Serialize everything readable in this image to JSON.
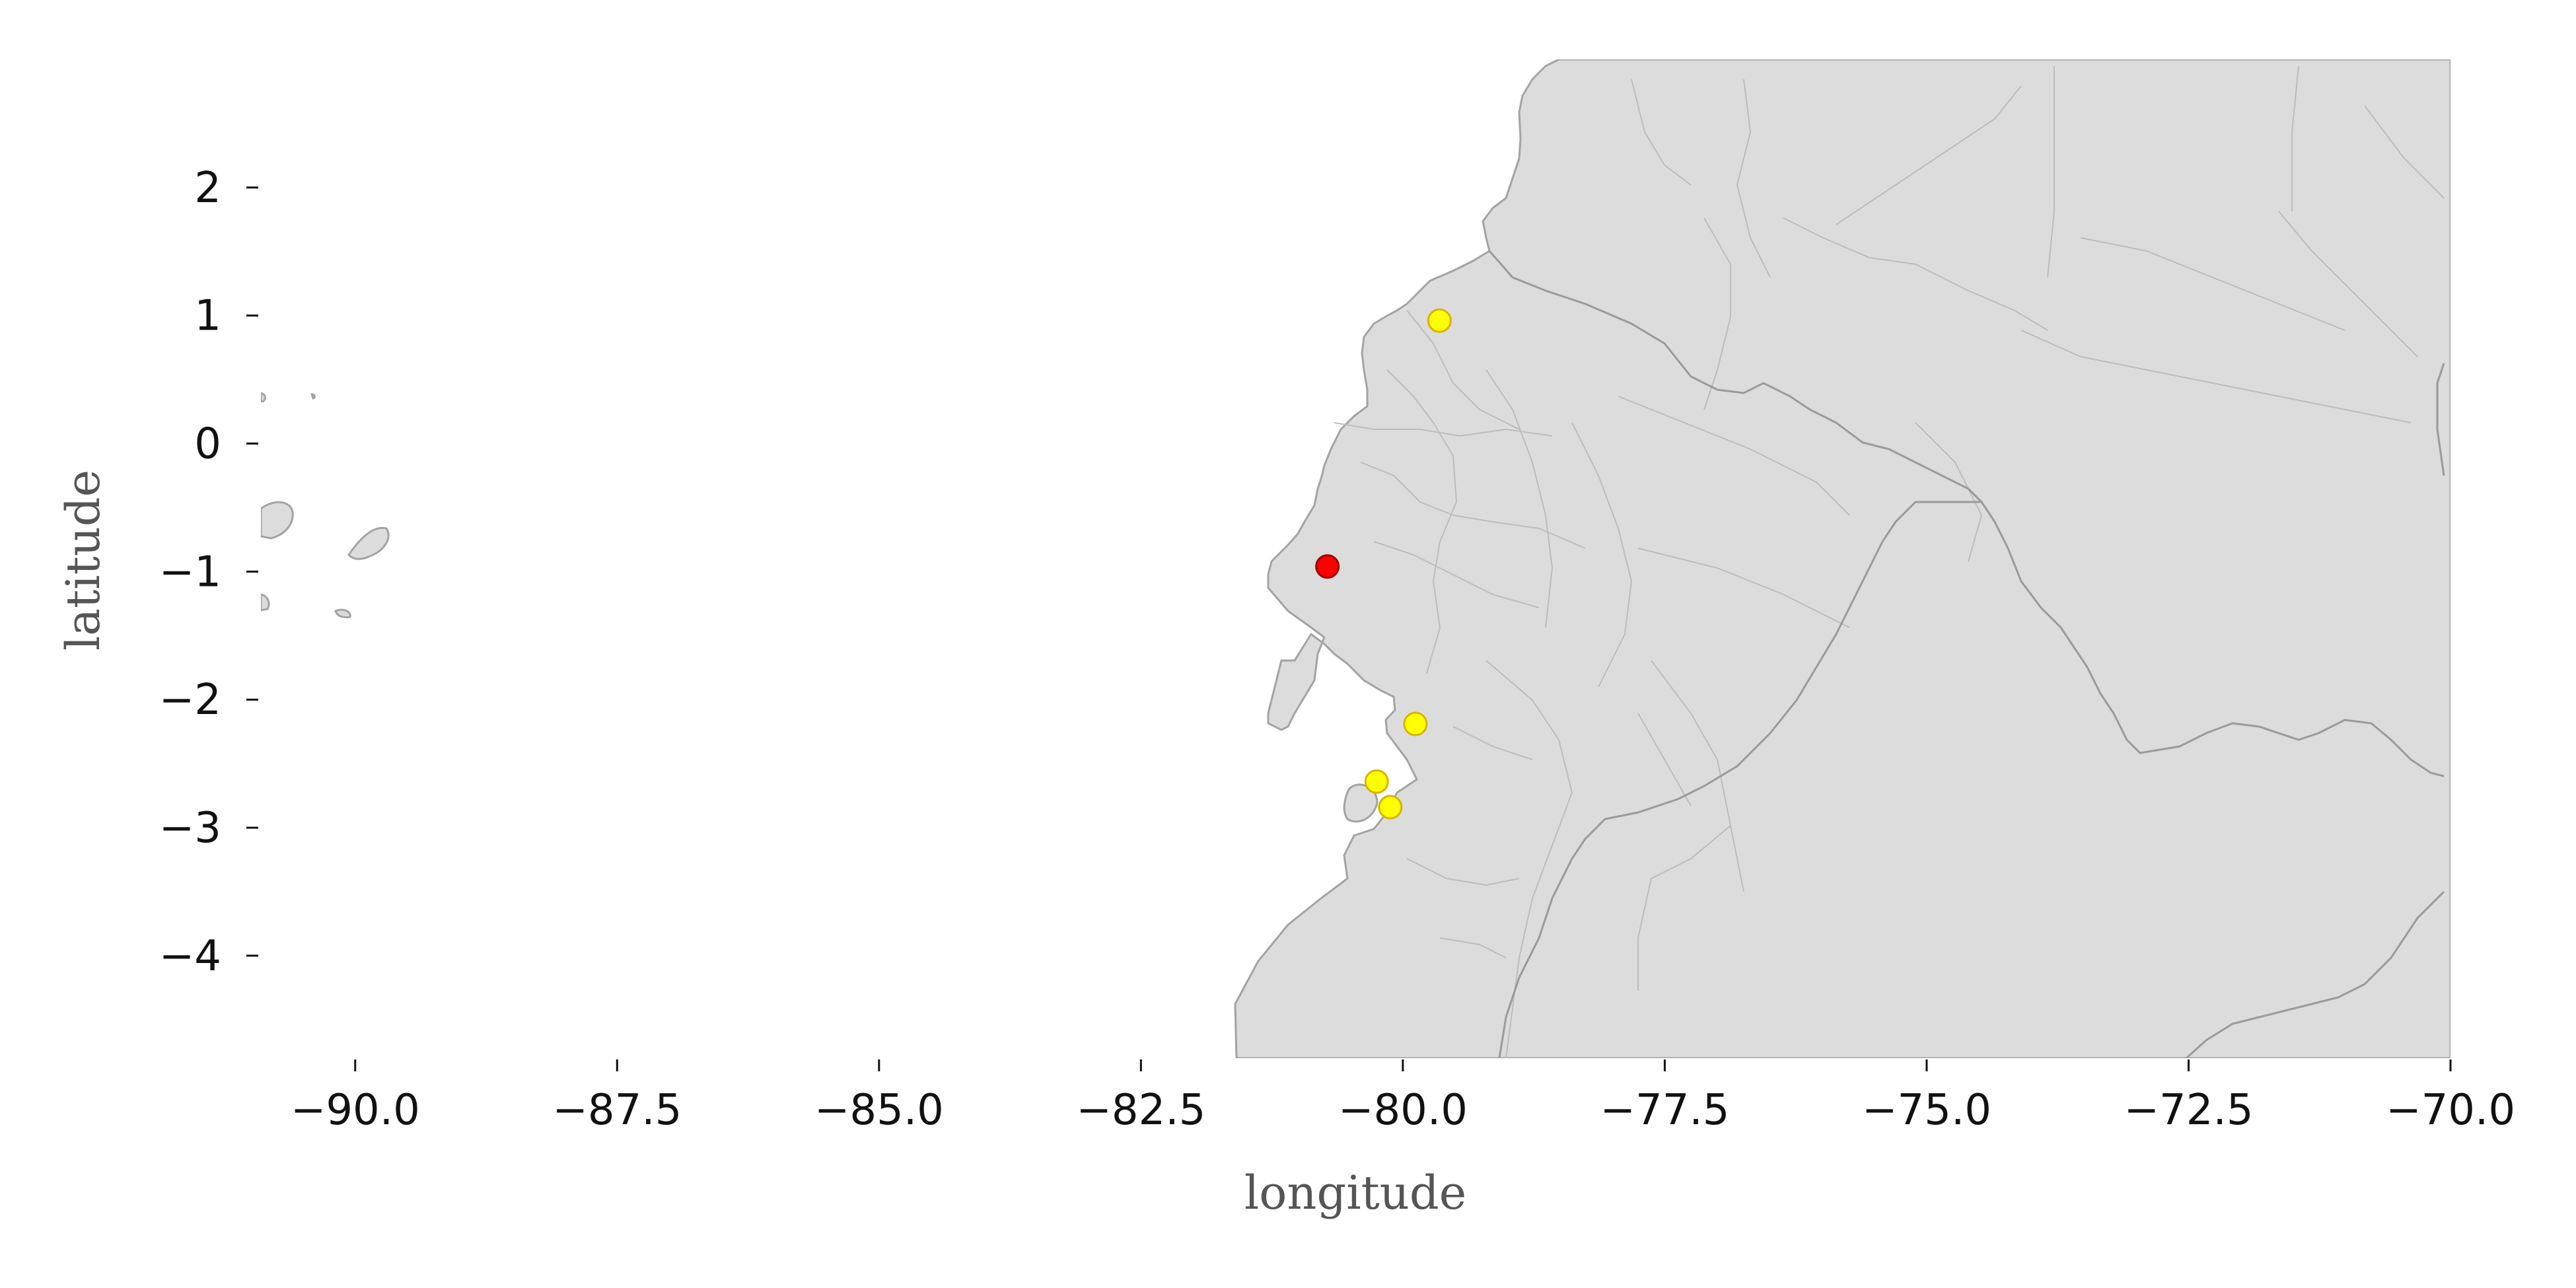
{
  "map": {
    "xlabel": "longitude",
    "ylabel": "latitude",
    "xlim": [
      -90.9,
      -70.0
    ],
    "ylim": [
      -4.8,
      3.0
    ],
    "land_color": "#dcdcdc",
    "border_color": "#a3a3a3"
  },
  "x_ticks": [
    {
      "value": -90.0,
      "label": "−90.0"
    },
    {
      "value": -87.5,
      "label": "−87.5"
    },
    {
      "value": -85.0,
      "label": "−85.0"
    },
    {
      "value": -82.5,
      "label": "−82.5"
    },
    {
      "value": -80.0,
      "label": "−80.0"
    },
    {
      "value": -77.5,
      "label": "−77.5"
    },
    {
      "value": -75.0,
      "label": "−75.0"
    },
    {
      "value": -72.5,
      "label": "−72.5"
    },
    {
      "value": -70.0,
      "label": "−70.0"
    }
  ],
  "y_ticks": [
    {
      "value": 2,
      "label": "2"
    },
    {
      "value": 1,
      "label": "1"
    },
    {
      "value": 0,
      "label": "0"
    },
    {
      "value": -1,
      "label": "−1"
    },
    {
      "value": -2,
      "label": "−2"
    },
    {
      "value": -3,
      "label": "−3"
    },
    {
      "value": -4,
      "label": "−4"
    }
  ],
  "points": [
    {
      "lon": -79.65,
      "lat": 0.96,
      "color": "#ffff00",
      "edge": "#d8b400"
    },
    {
      "lon": -79.88,
      "lat": -2.19,
      "color": "#ffff00",
      "edge": "#d8b400"
    },
    {
      "lon": -80.25,
      "lat": -2.64,
      "color": "#ffff00",
      "edge": "#d8b400"
    },
    {
      "lon": -80.12,
      "lat": -2.84,
      "color": "#ffff00",
      "edge": "#d8b400"
    },
    {
      "lon": -80.72,
      "lat": -0.96,
      "color": "#ff0000",
      "edge": "#a00000"
    }
  ]
}
